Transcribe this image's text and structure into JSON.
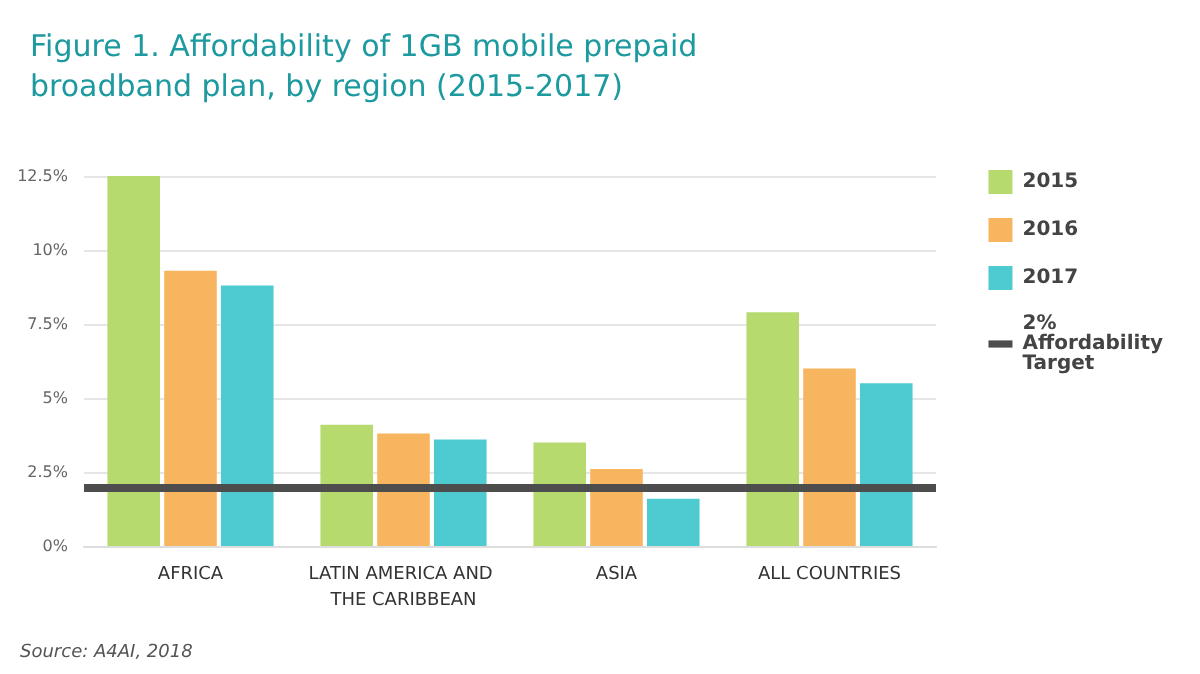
{
  "chart_data": {
    "type": "bar",
    "title": "Figure 1. Affordability of 1GB mobile prepaid broadband plan, by region (2015-2017)",
    "categories": [
      "AFRICA",
      "LATIN AMERICA AND THE CARIBBEAN",
      "ASIA",
      "ALL COUNTRIES"
    ],
    "series": [
      {
        "name": "2015",
        "color": "#b7da6e",
        "values": [
          12.5,
          4.1,
          3.5,
          7.9
        ]
      },
      {
        "name": "2016",
        "color": "#f8b55f",
        "values": [
          9.3,
          3.8,
          2.6,
          6.0
        ]
      },
      {
        "name": "2017",
        "color": "#4ecbd1",
        "values": [
          8.8,
          3.6,
          1.6,
          5.5
        ]
      }
    ],
    "ylim": [
      0,
      12.5
    ],
    "yticks": [
      {
        "value": 0,
        "label": "0%"
      },
      {
        "value": 2.5,
        "label": "2.5%"
      },
      {
        "value": 5,
        "label": "5%"
      },
      {
        "value": 7.5,
        "label": "7.5%"
      },
      {
        "value": 10,
        "label": "10%"
      },
      {
        "value": 12.5,
        "label": "12.5%"
      }
    ],
    "ref_lines": [
      {
        "axis": "y",
        "value": 2,
        "label": "2% Affordability Target",
        "color": "#4d4d4d"
      }
    ],
    "grid": "y",
    "legend": "right",
    "annotations": [
      "Source: A4AI, 2018"
    ]
  }
}
